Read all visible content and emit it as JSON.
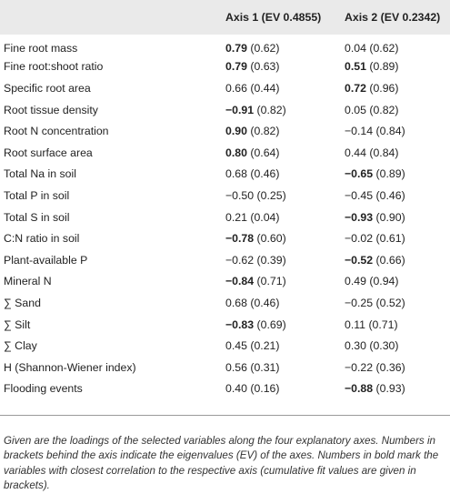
{
  "table": {
    "header": {
      "variable": "",
      "axis1": "Axis 1 (EV 0.4855)",
      "axis2": "Axis 2 (EV 0.2342)"
    },
    "rows": [
      {
        "variable": "Fine root mass",
        "a1_value": "0.79",
        "a1_fit": "(0.62)",
        "a1_bold": true,
        "a2_value": "0.04",
        "a2_fit": "(0.62)",
        "a2_bold": false
      },
      {
        "variable": "Fine root:shoot ratio",
        "a1_value": "0.79",
        "a1_fit": "(0.63)",
        "a1_bold": true,
        "a2_value": "0.51",
        "a2_fit": "(0.89)",
        "a2_bold": true
      },
      {
        "variable": "Specific root area",
        "a1_value": "0.66",
        "a1_fit": "(0.44)",
        "a1_bold": false,
        "a2_value": "0.72",
        "a2_fit": "(0.96)",
        "a2_bold": true
      },
      {
        "variable": "Root tissue density",
        "a1_value": "−0.91",
        "a1_fit": "(0.82)",
        "a1_bold": true,
        "a2_value": "0.05",
        "a2_fit": "(0.82)",
        "a2_bold": false
      },
      {
        "variable": "Root N concentration",
        "a1_value": "0.90",
        "a1_fit": "(0.82)",
        "a1_bold": true,
        "a2_value": "−0.14",
        "a2_fit": "(0.84)",
        "a2_bold": false
      },
      {
        "variable": "Root surface area",
        "a1_value": "0.80",
        "a1_fit": "(0.64)",
        "a1_bold": true,
        "a2_value": "0.44",
        "a2_fit": "(0.84)",
        "a2_bold": false
      },
      {
        "variable": "Total Na in soil",
        "a1_value": "0.68",
        "a1_fit": "(0.46)",
        "a1_bold": false,
        "a2_value": "−0.65",
        "a2_fit": "(0.89)",
        "a2_bold": true
      },
      {
        "variable": "Total P in soil",
        "a1_value": "−0.50",
        "a1_fit": "(0.25)",
        "a1_bold": false,
        "a2_value": "−0.45",
        "a2_fit": "(0.46)",
        "a2_bold": false
      },
      {
        "variable": "Total S in soil",
        "a1_value": "0.21",
        "a1_fit": "(0.04)",
        "a1_bold": false,
        "a2_value": "−0.93",
        "a2_fit": "(0.90)",
        "a2_bold": true
      },
      {
        "variable": "C:N ratio in soil",
        "a1_value": "−0.78",
        "a1_fit": "(0.60)",
        "a1_bold": true,
        "a2_value": "−0.02",
        "a2_fit": "(0.61)",
        "a2_bold": false
      },
      {
        "variable": "Plant-available P",
        "a1_value": "−0.62",
        "a1_fit": "(0.39)",
        "a1_bold": false,
        "a2_value": "−0.52",
        "a2_fit": "(0.66)",
        "a2_bold": true
      },
      {
        "variable": "Mineral N",
        "a1_value": "−0.84",
        "a1_fit": "(0.71)",
        "a1_bold": true,
        "a2_value": "0.49",
        "a2_fit": "(0.94)",
        "a2_bold": false
      },
      {
        "variable": "∑ Sand",
        "a1_value": "0.68",
        "a1_fit": "(0.46)",
        "a1_bold": false,
        "a2_value": "−0.25",
        "a2_fit": "(0.52)",
        "a2_bold": false
      },
      {
        "variable": "∑ Silt",
        "a1_value": "−0.83",
        "a1_fit": "(0.69)",
        "a1_bold": true,
        "a2_value": "0.11",
        "a2_fit": "(0.71)",
        "a2_bold": false
      },
      {
        "variable": "∑ Clay",
        "a1_value": "0.45",
        "a1_fit": "(0.21)",
        "a1_bold": false,
        "a2_value": "0.30",
        "a2_fit": "(0.30)",
        "a2_bold": false
      },
      {
        "variable": "H (Shannon-Wiener index)",
        "a1_value": "0.56",
        "a1_fit": "(0.31)",
        "a1_bold": false,
        "a2_value": "−0.22",
        "a2_fit": "(0.36)",
        "a2_bold": false
      },
      {
        "variable": "Flooding events",
        "a1_value": "0.40",
        "a1_fit": "(0.16)",
        "a1_bold": false,
        "a2_value": "−0.88",
        "a2_fit": "(0.93)",
        "a2_bold": true
      }
    ]
  },
  "footnote": "Given are the loadings of the selected variables along the four explanatory axes. Numbers in brackets behind the axis indicate the eigenvalues (EV) of the axes. Numbers in bold mark the variables with closest correlation to the respective axis (cumulative fit values are given in brackets)."
}
